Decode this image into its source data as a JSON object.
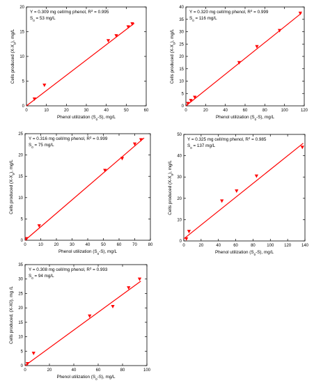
{
  "chart_data": [
    {
      "type": "scatter",
      "xlim": [
        0,
        60
      ],
      "ylim": [
        0,
        20
      ],
      "xticks": [
        "0",
        "10",
        "20",
        "30",
        "40",
        "50",
        "60"
      ],
      "yticks": [
        "0",
        "5",
        "10",
        "15",
        "20"
      ],
      "xlabel": {
        "text": "Phenol utilization (S",
        "sub": "0",
        "tail": "-S), mg/L"
      },
      "ylabel": {
        "text": "Cells produced (X-X",
        "sub": "0",
        "tail": "), mg/L"
      },
      "annotation": {
        "line1": {
          "main": "Y = 0.309 mg cell/mg phenol, R",
          "sup": "2",
          "tail": " = 0.995"
        },
        "line2": {
          "main": "S",
          "sub": "0",
          "tail": " = 53 mg/L"
        }
      },
      "fit": {
        "slope": 0.309,
        "intercept": 0.0,
        "x_range": [
          0,
          54
        ]
      },
      "points": [
        {
          "x": 4,
          "y": 1.4
        },
        {
          "x": 9,
          "y": 4.2
        },
        {
          "x": 41,
          "y": 13.2
        },
        {
          "x": 45,
          "y": 14.2
        },
        {
          "x": 51,
          "y": 16.0
        },
        {
          "x": 53,
          "y": 16.6
        }
      ]
    },
    {
      "type": "scatter",
      "xlim": [
        0,
        120
      ],
      "ylim": [
        0,
        40
      ],
      "xticks": [
        "0",
        "20",
        "40",
        "60",
        "80",
        "100",
        "120"
      ],
      "yticks": [
        "0",
        "5",
        "10",
        "15",
        "20",
        "25",
        "30",
        "35",
        "40"
      ],
      "xlabel": {
        "text": "Phenol utilization (S",
        "sub": "0",
        "tail": "-S), mg/L"
      },
      "ylabel": {
        "text": "Cells produced (X-X",
        "sub": "0",
        "tail": "), mg/L"
      },
      "annotation": {
        "line1": {
          "main": "Y = 0.320 mg cell/mg phenol, R",
          "sup": "2",
          "tail": " = 0.999"
        },
        "line2": {
          "main": "S",
          "sub": "0",
          "tail": " = 116 mg/L"
        }
      },
      "fit": {
        "slope": 0.32,
        "intercept": 0.0,
        "x_range": [
          0,
          117
        ]
      },
      "points": [
        {
          "x": 2,
          "y": 1.0
        },
        {
          "x": 5,
          "y": 2.2
        },
        {
          "x": 9,
          "y": 3.5
        },
        {
          "x": 54,
          "y": 17.5
        },
        {
          "x": 72,
          "y": 24.0
        },
        {
          "x": 95,
          "y": 30.5
        },
        {
          "x": 116,
          "y": 37.5
        }
      ]
    },
    {
      "type": "scatter",
      "xlim": [
        0,
        80
      ],
      "ylim": [
        0,
        25
      ],
      "xticks": [
        "0",
        "10",
        "20",
        "30",
        "40",
        "50",
        "60",
        "70",
        "80"
      ],
      "yticks": [
        "0",
        "5",
        "10",
        "15",
        "20",
        "25"
      ],
      "xlabel": {
        "text": "Phenol utilization (S",
        "sub": "0",
        "tail": "-S), mg/L"
      },
      "ylabel": {
        "text": "Cells produced (X-X",
        "sub": "0",
        "tail": "), mg/L"
      },
      "annotation": {
        "line1": {
          "main": "Y = 0.316 mg cell/mg phenol, R",
          "sup": "2",
          "tail": " = 0.999"
        },
        "line2": {
          "main": "S",
          "sub": "0",
          "tail": " = 75 mg/L"
        }
      },
      "fit": {
        "slope": 0.316,
        "intercept": 0.0,
        "x_range": [
          0,
          76
        ]
      },
      "points": [
        {
          "x": 1,
          "y": 0.4
        },
        {
          "x": 9,
          "y": 3.4
        },
        {
          "x": 51,
          "y": 16.4
        },
        {
          "x": 62,
          "y": 19.2
        },
        {
          "x": 70,
          "y": 22.6
        },
        {
          "x": 74,
          "y": 23.6
        }
      ]
    },
    {
      "type": "scatter",
      "xlim": [
        0,
        140
      ],
      "ylim": [
        0,
        50
      ],
      "xticks": [
        "0",
        "20",
        "40",
        "60",
        "80",
        "100",
        "120",
        "140"
      ],
      "yticks": [
        "0",
        "10",
        "20",
        "30",
        "40",
        "50"
      ],
      "xlabel": {
        "text": "Phenol utilization (S",
        "sub": "0",
        "tail": "-S), mg/L"
      },
      "ylabel": {
        "text": "Cells produced (X-X",
        "sub": "0",
        "tail": "), mg/L"
      },
      "annotation": {
        "line1": {
          "main": "Y = 0.325 mg cell/mg phenol, R",
          "sup": "2",
          "tail": " = 0.985"
        },
        "line2": {
          "main": "S",
          "sub": "0",
          "tail": " = 137 mg/L"
        }
      },
      "fit": {
        "slope": 0.325,
        "intercept": 1.0,
        "x_range": [
          0,
          138
        ]
      },
      "points": [
        {
          "x": 3,
          "y": 1.0
        },
        {
          "x": 6,
          "y": 4.5
        },
        {
          "x": 44,
          "y": 18.8
        },
        {
          "x": 61,
          "y": 23.5
        },
        {
          "x": 84,
          "y": 30.5
        },
        {
          "x": 137,
          "y": 44.0
        }
      ]
    },
    {
      "type": "scatter",
      "xlim": [
        0,
        100
      ],
      "ylim": [
        0,
        35
      ],
      "xticks": [
        "0",
        "20",
        "40",
        "60",
        "80",
        "100"
      ],
      "yticks": [
        "0",
        "5",
        "10",
        "15",
        "20",
        "25",
        "30",
        "35"
      ],
      "xlabel": {
        "text": "Phenol utilization (S",
        "sub": "0",
        "tail": "-S), mg/L"
      },
      "ylabel": {
        "text": "Cells produced, (X-X0), mg /L",
        "sub": "",
        "tail": ""
      },
      "annotation": {
        "line1": {
          "main": "Y = 0.308 mg cell/mg phenol, R",
          "sup": "2",
          "tail": " = 0.993"
        },
        "line2": {
          "main": "S",
          "sub": "0",
          "tail": " = 94 mg/L"
        }
      },
      "fit": {
        "slope": 0.308,
        "intercept": 0.0,
        "x_range": [
          0,
          95
        ]
      },
      "points": [
        {
          "x": 2,
          "y": 0.7
        },
        {
          "x": 7,
          "y": 4.3
        },
        {
          "x": 53,
          "y": 17.2
        },
        {
          "x": 72,
          "y": 20.5
        },
        {
          "x": 85,
          "y": 27.0
        },
        {
          "x": 94,
          "y": 30.0
        }
      ]
    }
  ]
}
